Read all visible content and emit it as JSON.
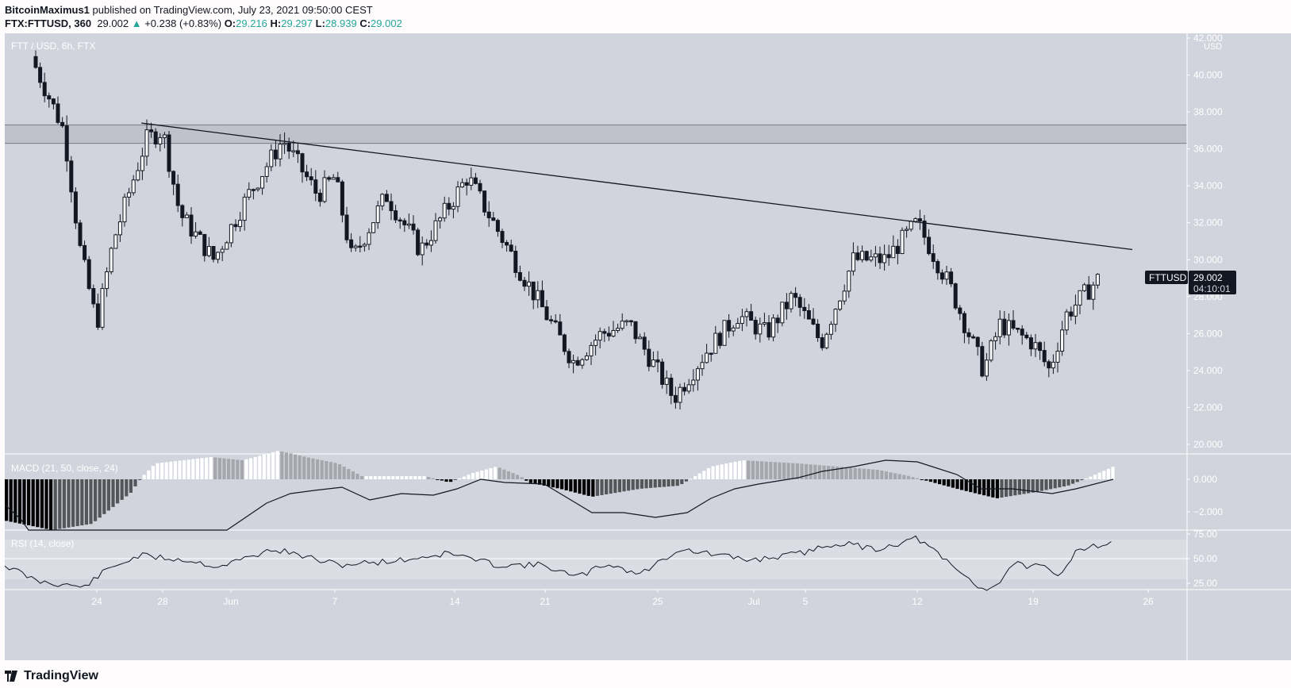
{
  "header": {
    "author": "BitcoinMaximus1",
    "published_text": "published on TradingView.com, July 23, 2021 09:50:00 CEST",
    "symbol": "FTX:FTTUSD, 360",
    "last": "29.002",
    "change_arrow": "▲",
    "change": "+0.238 (+0.83%)",
    "o_label": "O:",
    "o": "29.216",
    "h_label": "H:",
    "h": "29.297",
    "l_label": "L:",
    "l": "28.939",
    "c_label": "C:",
    "c": "29.002"
  },
  "chart": {
    "watermark": "FTT / USD, 6h, FTX",
    "currency": "USD",
    "price_ticks": [
      "42.000",
      "40.000",
      "38.000",
      "36.000",
      "34.000",
      "32.000",
      "30.000",
      "28.000",
      "26.000",
      "24.000",
      "22.000",
      "20.000"
    ],
    "symbol_tag": "FTTUSD",
    "price_tag": "29.002",
    "countdown": "04:10:01",
    "x_ticks": [
      "24",
      "28",
      "Jun",
      "7",
      "14",
      "21",
      "25",
      "Jul",
      "5",
      "12",
      "19",
      "26"
    ],
    "macd_label": "MACD (21, 50, close, 24)",
    "macd_ticks": [
      "0.000",
      "−2.000"
    ],
    "rsi_label": "RSI (14, close)",
    "rsi_ticks": [
      "75.00",
      "50.00",
      "25.00"
    ]
  },
  "footer": {
    "brand": "TradingView"
  },
  "colors": {
    "background": "#d1d4dc",
    "candle_down": "#131722",
    "candle_up_fill": "#ffffff",
    "axis_text": "#ffffff",
    "resistance_zone": "#bfc2ca",
    "teal": "#26a69a"
  },
  "chart_data": {
    "type": "candlestick",
    "title": "FTT / USD, 6h, FTX",
    "xlabel": "",
    "ylabel": "USD",
    "ylim": [
      19.0,
      42.5
    ],
    "x_ticks": [
      "May 24",
      "May 28",
      "Jun 1",
      "Jun 7",
      "Jun 14",
      "Jun 21",
      "Jun 25",
      "Jul 1",
      "Jul 5",
      "Jul 12",
      "Jul 19",
      "Jul 26"
    ],
    "approx_close_path": [
      {
        "date": "May 20",
        "close": 41.0
      },
      {
        "date": "May 22",
        "close": 37.0
      },
      {
        "date": "May 23",
        "close": 30.5
      },
      {
        "date": "May 24",
        "close": 26.5
      },
      {
        "date": "May 25",
        "close": 31.0
      },
      {
        "date": "May 27",
        "close": 36.5
      },
      {
        "date": "May 28",
        "close": 37.0
      },
      {
        "date": "May 29",
        "close": 32.5
      },
      {
        "date": "May 31",
        "close": 30.0
      },
      {
        "date": "Jun 2",
        "close": 33.5
      },
      {
        "date": "Jun 4",
        "close": 36.5
      },
      {
        "date": "Jun 6",
        "close": 33.5
      },
      {
        "date": "Jun 7",
        "close": 34.5
      },
      {
        "date": "Jun 8",
        "close": 30.0
      },
      {
        "date": "Jun 10",
        "close": 33.5
      },
      {
        "date": "Jun 12",
        "close": 30.5
      },
      {
        "date": "Jun 15",
        "close": 34.5
      },
      {
        "date": "Jun 17",
        "close": 32.0
      },
      {
        "date": "Jun 19",
        "close": 29.5
      },
      {
        "date": "Jun 22",
        "close": 24.5
      },
      {
        "date": "Jun 23",
        "close": 26.0
      },
      {
        "date": "Jun 24",
        "close": 26.5
      },
      {
        "date": "Jun 26",
        "close": 22.5
      },
      {
        "date": "Jun 28",
        "close": 25.0
      },
      {
        "date": "Jun 30",
        "close": 27.0
      },
      {
        "date": "Jul 2",
        "close": 26.0
      },
      {
        "date": "Jul 4",
        "close": 28.0
      },
      {
        "date": "Jul 6",
        "close": 25.5
      },
      {
        "date": "Jul 8",
        "close": 30.0
      },
      {
        "date": "Jul 10",
        "close": 30.0
      },
      {
        "date": "Jul 12",
        "close": 32.0
      },
      {
        "date": "Jul 14",
        "close": 28.5
      },
      {
        "date": "Jul 16",
        "close": 24.0
      },
      {
        "date": "Jul 17",
        "close": 26.5
      },
      {
        "date": "Jul 19",
        "close": 25.5
      },
      {
        "date": "Jul 20",
        "close": 24.0
      },
      {
        "date": "Jul 21",
        "close": 27.0
      },
      {
        "date": "Jul 23",
        "close": 29.0
      }
    ],
    "annotations": [
      {
        "type": "horizontal_zone",
        "from": 36.3,
        "to": 37.3,
        "label": "resistance"
      },
      {
        "type": "descending_trendline",
        "start": {
          "date": "May 28",
          "price": 37.3
        },
        "end": {
          "date": "Jul 24",
          "price": 30.5
        }
      }
    ],
    "last_price": 29.002,
    "indicators": [
      {
        "name": "MACD (21, 50, close, 24)",
        "ylim": [
          -2.8,
          1.6
        ],
        "ticks": [
          0,
          -2
        ]
      },
      {
        "name": "RSI (14, close)",
        "ylim": [
          20,
          80
        ],
        "ticks": [
          75,
          50,
          25
        ],
        "band": [
          30,
          70
        ]
      }
    ],
    "grid": false,
    "legend_position": "top-left"
  }
}
